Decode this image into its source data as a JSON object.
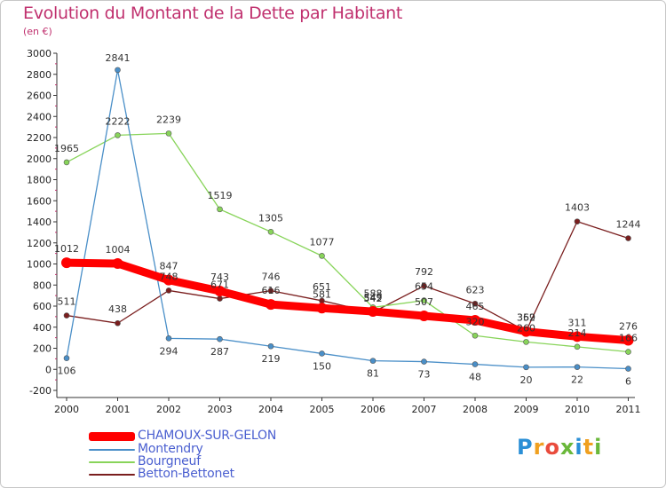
{
  "header": {
    "title": "Evolution du Montant de la Dette par Habitant",
    "unit": "(en €)"
  },
  "logo": {
    "letters": [
      "P",
      "r",
      "o",
      "x",
      "i",
      "t",
      "i"
    ],
    "colors": [
      "#2a8fd6",
      "#f0a020",
      "#e94b3c",
      "#6ab83a",
      "#2a8fd6",
      "#f0a020",
      "#6ab83a"
    ]
  },
  "chart_data": {
    "type": "line",
    "title": "Evolution du Montant de la Dette par Habitant",
    "xlabel": "",
    "ylabel": "(en €)",
    "ylim": [
      -200,
      3000
    ],
    "yticks": [
      -200,
      0,
      200,
      400,
      600,
      800,
      1000,
      1200,
      1400,
      1600,
      1800,
      2000,
      2200,
      2400,
      2600,
      2800,
      3000
    ],
    "x": [
      "2000",
      "2001",
      "2002",
      "2003",
      "2004",
      "2005",
      "2006",
      "2007",
      "2008",
      "2009",
      "2010",
      "2011"
    ],
    "grid": false,
    "legend_position": "bottom-left",
    "series": [
      {
        "name": "Betton-Bettonet",
        "color": "#7a1e1e",
        "values": [
          511,
          438,
          748,
          671,
          746,
          651,
          542,
          792,
          623,
          362,
          1403,
          1244
        ],
        "labels": [
          "511",
          "438",
          "748",
          "671",
          "746",
          "651",
          "542",
          "792",
          "623",
          "362",
          "1403",
          "1244"
        ]
      },
      {
        "name": "Bourgneuf",
        "color": "#88d45a",
        "values": [
          1965,
          2222,
          2239,
          1519,
          1305,
          1077,
          588,
          654,
          320,
          260,
          214,
          166
        ],
        "labels": [
          "1965",
          "2222",
          "2239",
          "1519",
          "1305",
          "1077",
          "588",
          "654",
          "320",
          "260",
          "214",
          "166"
        ]
      },
      {
        "name": "Montendry",
        "color": "#4a8fc8",
        "values": [
          106,
          2841,
          294,
          287,
          219,
          150,
          81,
          73,
          48,
          20,
          22,
          6
        ],
        "labels": [
          "106",
          "2841",
          "294",
          "287",
          "219",
          "150",
          "81",
          "73",
          "48",
          "20",
          "22",
          "6"
        ]
      },
      {
        "name": "CHAMOUX-SUR-GELON",
        "color": "#ff0000",
        "values": [
          1012,
          1004,
          847,
          743,
          616,
          581,
          549,
          507,
          465,
          359,
          311,
          276
        ],
        "labels": [
          "1012",
          "1004",
          "847",
          "743",
          "616",
          "581",
          "549",
          "507",
          "465",
          "359",
          "311",
          "276"
        ]
      }
    ],
    "legend": [
      "CHAMOUX-SUR-GELON",
      "Montendry",
      "Bourgneuf",
      "Betton-Bettonet"
    ]
  }
}
